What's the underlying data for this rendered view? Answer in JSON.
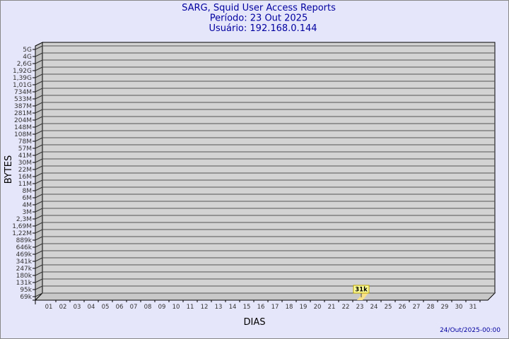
{
  "chart_data": {
    "type": "bar",
    "title": [
      "SARG, Squid User Access Reports",
      "Período: 23 Out 2025",
      "Usuário: 192.168.0.144"
    ],
    "xlabel": "DIAS",
    "ylabel": "BYTES",
    "footer": "24/Out/2025-00:00",
    "y_scale": "log",
    "y_ticks": [
      "5G",
      "4G",
      "2,6G",
      "1,92G",
      "1,39G",
      "1,01G",
      "734M",
      "533M",
      "387M",
      "281M",
      "204M",
      "148M",
      "108M",
      "78M",
      "57M",
      "41M",
      "30M",
      "22M",
      "16M",
      "11M",
      "8M",
      "6M",
      "4M",
      "3M",
      "2,3M",
      "1,69M",
      "1,22M",
      "889k",
      "646k",
      "469k",
      "341k",
      "247k",
      "180k",
      "131k",
      "95k",
      "69k"
    ],
    "categories": [
      "01",
      "02",
      "03",
      "04",
      "05",
      "06",
      "07",
      "08",
      "09",
      "10",
      "11",
      "12",
      "13",
      "14",
      "15",
      "16",
      "17",
      "18",
      "19",
      "20",
      "21",
      "22",
      "23",
      "24",
      "25",
      "26",
      "27",
      "28",
      "29",
      "30",
      "31"
    ],
    "values": [
      {
        "day": "23",
        "bytes": 31000,
        "label": "31k"
      }
    ],
    "grid": true,
    "colors": {
      "background": "#e6e6fa",
      "plot": "#d3d3d3",
      "title": "#0000a0",
      "bar": "#f7e28a",
      "label_box": "#ffff99"
    }
  }
}
